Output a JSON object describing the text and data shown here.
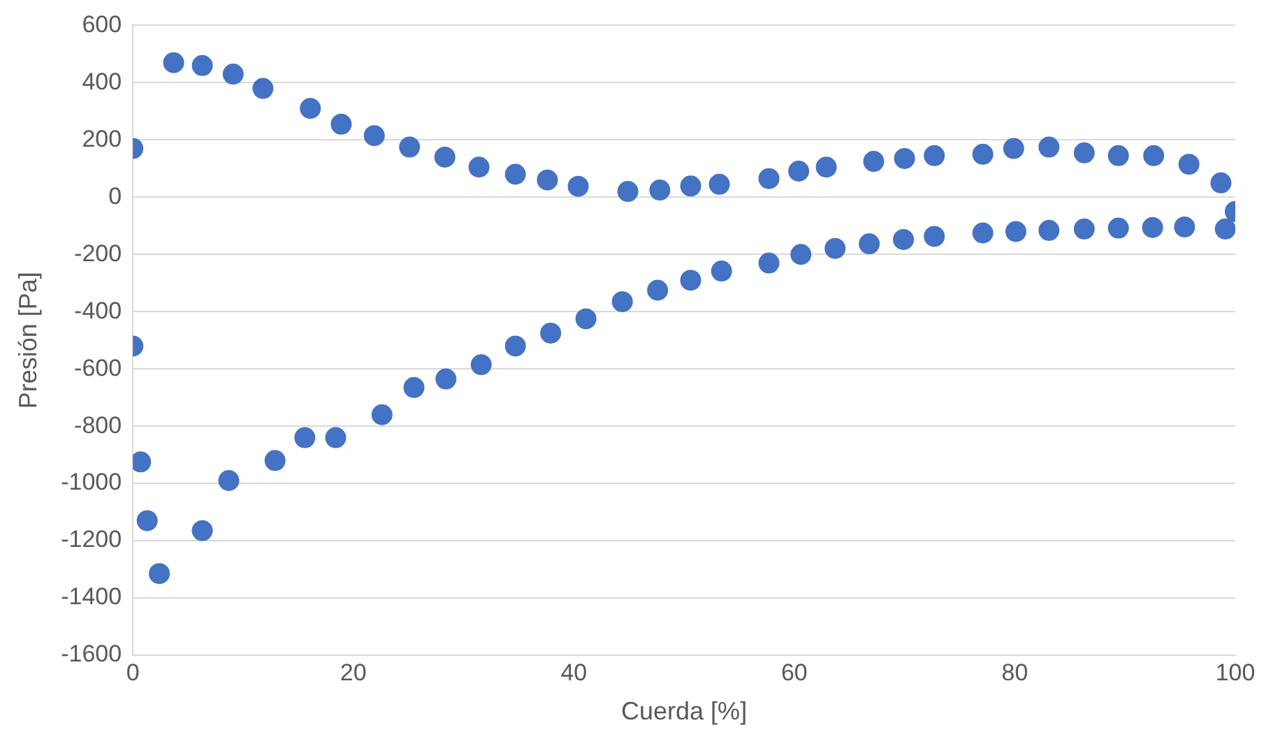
{
  "chart_data": {
    "type": "scatter",
    "xlabel": "Cuerda [%]",
    "ylabel": "Presión [Pa]",
    "series": [
      {
        "color": "#4472c4",
        "x": [
          0,
          3.7,
          6.3,
          9.1,
          11.8,
          16.1,
          18.9,
          21.9,
          25.1,
          28.3,
          31.4,
          34.7,
          37.6,
          40.4,
          44.9,
          47.8,
          50.6,
          53.2,
          57.7,
          60.4,
          62.9,
          67.2,
          70.0,
          72.7,
          77.1,
          79.9,
          83.1,
          86.3,
          89.4,
          92.6,
          95.8,
          98.7,
          100,
          0,
          0.7,
          1.3,
          2.4,
          6.3,
          8.7,
          12.9,
          15.6,
          18.4,
          22.6,
          25.5,
          28.4,
          31.6,
          34.7,
          37.9,
          41.1,
          44.4,
          47.6,
          50.6,
          53.4,
          57.7,
          60.6,
          63.7,
          66.8,
          69.9,
          72.7,
          77.1,
          80.1,
          83.1,
          86.3,
          89.4,
          92.5,
          95.4,
          99.1
        ],
        "values": [
          170,
          470,
          460,
          430,
          380,
          310,
          255,
          215,
          175,
          140,
          105,
          80,
          60,
          38,
          20,
          25,
          39,
          45,
          65,
          91,
          105,
          125,
          135,
          145,
          150,
          170,
          175,
          155,
          145,
          145,
          115,
          50,
          -50,
          -520,
          -925,
          -1130,
          -1315,
          -1165,
          -990,
          -920,
          -840,
          -840,
          -760,
          -665,
          -635,
          -585,
          -520,
          -475,
          -425,
          -365,
          -325,
          -290,
          -258,
          -230,
          -200,
          -179,
          -163,
          -148,
          -137,
          -125,
          -120,
          -116,
          -111,
          -108,
          -106,
          -104,
          -111
        ]
      }
    ],
    "xlim": [
      0,
      100
    ],
    "xticks": [
      0,
      20,
      40,
      60,
      80,
      100
    ],
    "ylim": [
      -1600,
      600
    ],
    "yticks": [
      -1600,
      -1400,
      -1200,
      -1000,
      -800,
      -600,
      -400,
      -200,
      0,
      200,
      400,
      600
    ],
    "grid": "y",
    "legend": false,
    "marker": "circle"
  }
}
